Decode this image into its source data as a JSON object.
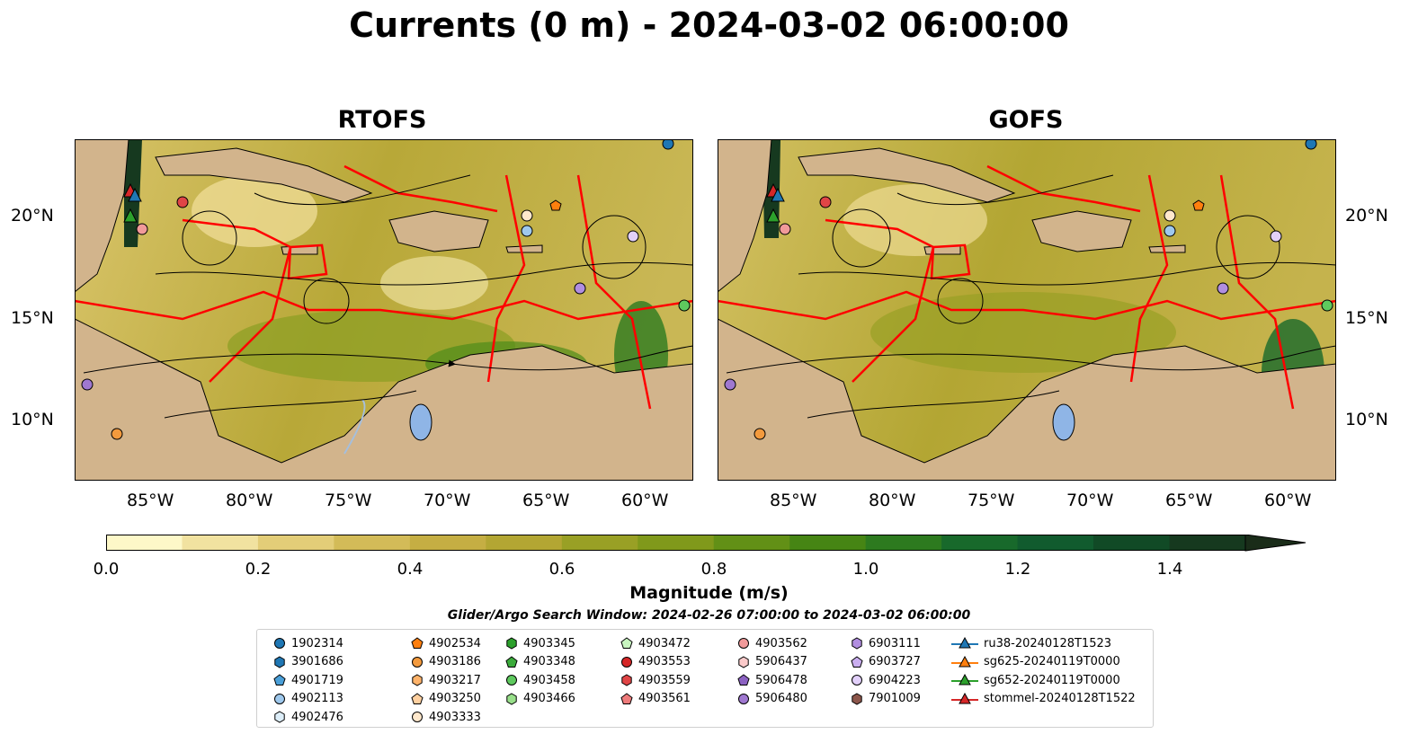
{
  "title": "Currents (0 m) - 2024-03-02 06:00:00",
  "panels": [
    {
      "title": "RTOFS"
    },
    {
      "title": "GOFS"
    }
  ],
  "lon_ticks": [
    "85°W",
    "80°W",
    "75°W",
    "70°W",
    "65°W",
    "60°W"
  ],
  "lat_ticks": [
    "20°N",
    "15°N",
    "10°N"
  ],
  "colorbar": {
    "label": "Magnitude (m/s)",
    "ticks": [
      "0.0",
      "0.2",
      "0.4",
      "0.6",
      "0.8",
      "1.0",
      "1.2",
      "1.4"
    ],
    "range": [
      0,
      1.5
    ],
    "extend": "max",
    "colors": [
      "#fdf8c8",
      "#f1e2a0",
      "#e3cd78",
      "#d3bb58",
      "#c5ae43",
      "#b3a633",
      "#99a025",
      "#80991b",
      "#629016",
      "#468514",
      "#2d7a1f",
      "#18692b",
      "#115b2e",
      "#114a26",
      "#16391f",
      "#1a2c19"
    ]
  },
  "search_window": "Glider/Argo Search Window: 2024-02-26 07:00:00 to 2024-03-02 06:00:00",
  "legend": {
    "columns": [
      [
        {
          "label": "1902314",
          "marker": "circle",
          "color": "#1f77b4"
        },
        {
          "label": "3901686",
          "marker": "hexagon",
          "color": "#1f77b4"
        },
        {
          "label": "4901719",
          "marker": "pentagon",
          "color": "#4a9fd8"
        },
        {
          "label": "4902113",
          "marker": "circle",
          "color": "#9ec8ec"
        },
        {
          "label": "4902476",
          "marker": "hexagon",
          "color": "#ddeef9"
        }
      ],
      [
        {
          "label": "4902534",
          "marker": "pentagon",
          "color": "#ff7f0e"
        },
        {
          "label": "4903186",
          "marker": "circle",
          "color": "#f39a3d"
        },
        {
          "label": "4903217",
          "marker": "hexagon",
          "color": "#ffb36a"
        },
        {
          "label": "4903250",
          "marker": "pentagon",
          "color": "#ffd0a0"
        },
        {
          "label": "4903333",
          "marker": "circle",
          "color": "#ffe8cc"
        }
      ],
      [
        {
          "label": "4903345",
          "marker": "hexagon",
          "color": "#2ca02c"
        },
        {
          "label": "4903348",
          "marker": "pentagon",
          "color": "#3bab3b"
        },
        {
          "label": "4903458",
          "marker": "circle",
          "color": "#5ec95e"
        },
        {
          "label": "4903466",
          "marker": "hexagon",
          "color": "#98df8a"
        }
      ],
      [
        {
          "label": "4903472",
          "marker": "pentagon",
          "color": "#c8f5c0"
        },
        {
          "label": "4903553",
          "marker": "circle",
          "color": "#d62728"
        },
        {
          "label": "4903559",
          "marker": "hexagon",
          "color": "#e04546"
        },
        {
          "label": "4903561",
          "marker": "pentagon",
          "color": "#ee7b7b"
        }
      ],
      [
        {
          "label": "4903562",
          "marker": "circle",
          "color": "#f19a9a"
        },
        {
          "label": "5906437",
          "marker": "hexagon",
          "color": "#fbcaca"
        },
        {
          "label": "5906478",
          "marker": "pentagon",
          "color": "#8c62c2"
        },
        {
          "label": "5906480",
          "marker": "circle",
          "color": "#9f78d0"
        }
      ],
      [
        {
          "label": "6903111",
          "marker": "hexagon",
          "color": "#b18ee0"
        },
        {
          "label": "6903727",
          "marker": "pentagon",
          "color": "#caaef0"
        },
        {
          "label": "6904223",
          "marker": "circle",
          "color": "#e2d0fa"
        },
        {
          "label": "7901009",
          "marker": "hexagon",
          "color": "#8c564b"
        }
      ],
      [
        {
          "label": "ru38-20240128T1523",
          "marker": "triangle-line",
          "color": "#1f77b4"
        },
        {
          "label": "sg625-20240119T0000",
          "marker": "triangle-line",
          "color": "#ff7f0e"
        },
        {
          "label": "sg652-20240119T0000",
          "marker": "triangle-line",
          "color": "#2ca02c"
        },
        {
          "label": "stommel-20240128T1522",
          "marker": "triangle-line",
          "color": "#d62728"
        }
      ]
    ]
  },
  "map_colors": {
    "land": "#d2b48c",
    "eez": "#ff0000",
    "lake": "#8fb5e6",
    "river": "#a5bfdd",
    "streamline": "#000000"
  }
}
